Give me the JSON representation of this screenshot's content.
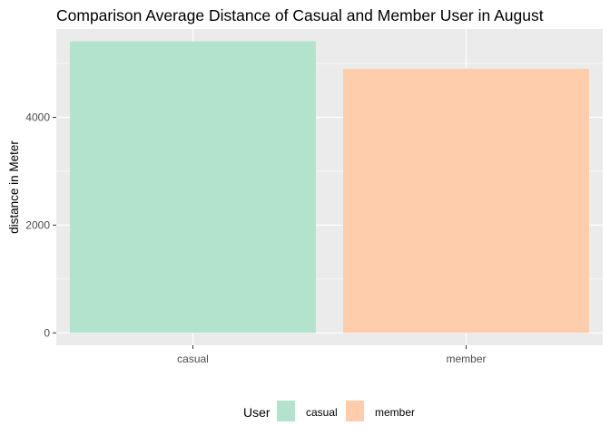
{
  "chart_data": {
    "type": "bar",
    "title": "Comparison Average Distance of Casual and Member User in August",
    "xlabel": "",
    "ylabel": "distance in Meter",
    "categories": [
      "casual",
      "member"
    ],
    "values": [
      5410,
      4900
    ],
    "ylim": [
      -230,
      5640
    ],
    "yticks": [
      0,
      2000,
      4000
    ],
    "colors": [
      "#B3E2CD",
      "#FDCDAC"
    ],
    "grid": true,
    "background": "#EBEBEB",
    "legend": {
      "title": "User",
      "position": "bottom",
      "entries": [
        {
          "label": "casual",
          "color": "#B3E2CD"
        },
        {
          "label": "member",
          "color": "#FDCDAC"
        }
      ]
    }
  }
}
